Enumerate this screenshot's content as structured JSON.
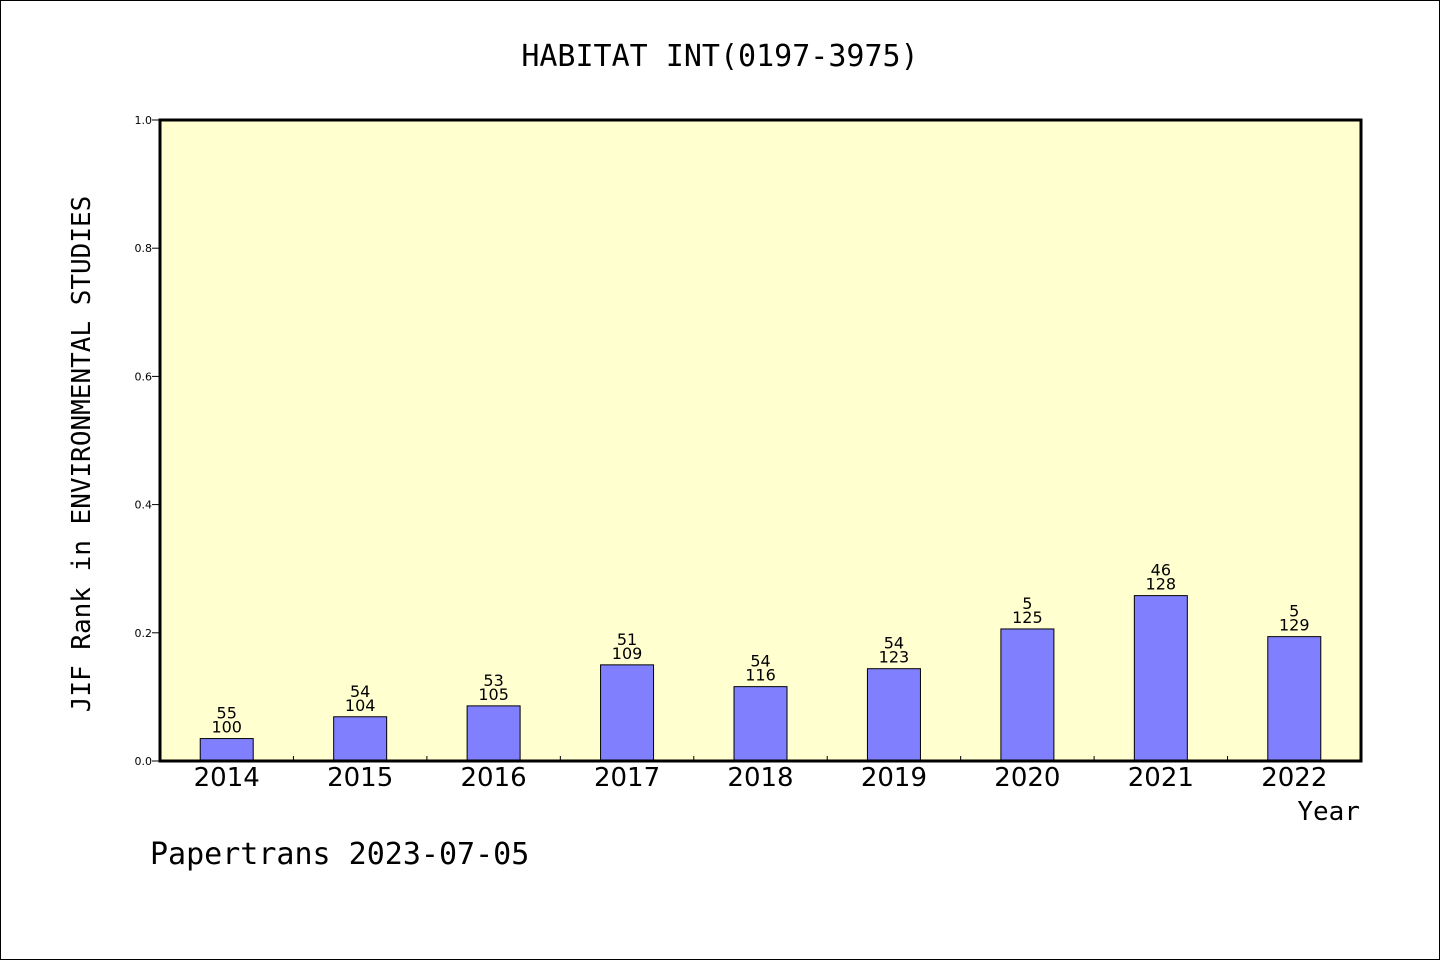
{
  "chart_data": {
    "type": "bar",
    "title": "HABITAT INT(0197-3975)",
    "xlabel": "Year",
    "ylabel": "JIF Rank in ENVIRONMENTAL STUDIES",
    "ylim": [
      0,
      1.0
    ],
    "yticks": [
      "0.0",
      "0.2",
      "0.4",
      "0.6",
      "0.8",
      "1.0"
    ],
    "categories": [
      "2014",
      "2015",
      "2016",
      "2017",
      "2018",
      "2019",
      "2020",
      "2021",
      "2022"
    ],
    "values": [
      0.035,
      0.069,
      0.086,
      0.15,
      0.116,
      0.144,
      0.206,
      0.258,
      0.194
    ],
    "rank_labels": [
      "55",
      "54",
      "53",
      "51",
      "54",
      "54",
      "5",
      "46",
      "5"
    ],
    "total_labels": [
      "100",
      "104",
      "105",
      "109",
      "116",
      "123",
      "125",
      "128",
      "129"
    ],
    "grid": false,
    "colors": {
      "bar_fill": "#8080ff",
      "plot_background": "#ffffd0",
      "axis": "#000000"
    }
  },
  "footer": "Papertrans 2023-07-05"
}
